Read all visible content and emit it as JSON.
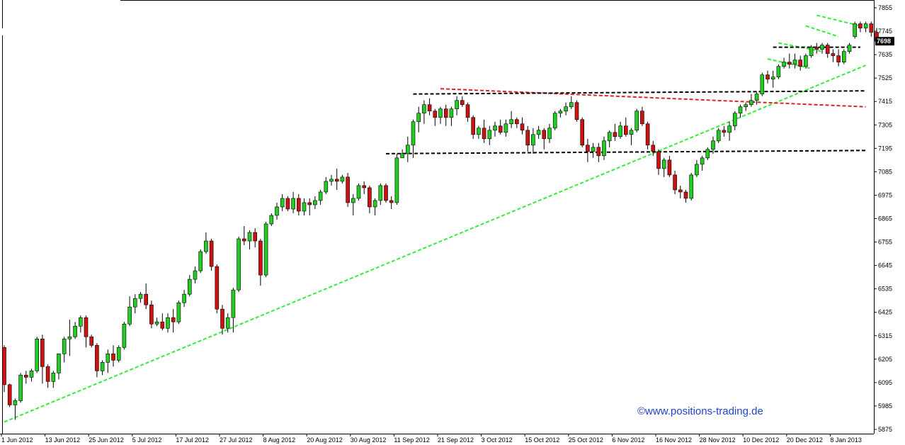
{
  "chart_data": {
    "type": "candlestick",
    "title": "",
    "xlabel": "",
    "ylabel": "",
    "ylim": [
      5860,
      7870
    ],
    "y_ticks": [
      7855,
      7745,
      7635,
      7525,
      7415,
      7305,
      7195,
      7085,
      6975,
      6865,
      6755,
      6645,
      6535,
      6425,
      6315,
      6205,
      6095,
      5985,
      5875
    ],
    "x_ticks": [
      {
        "label": "1 Jun 2012",
        "index": 0
      },
      {
        "label": "13 Jun 2012",
        "index": 8
      },
      {
        "label": "25 Jun 2012",
        "index": 16
      },
      {
        "label": "5 Jul 2012",
        "index": 24
      },
      {
        "label": "17 Jul 2012",
        "index": 32
      },
      {
        "label": "27 Jul 2012",
        "index": 40
      },
      {
        "label": "8 Aug 2012",
        "index": 48
      },
      {
        "label": "20 Aug 2012",
        "index": 56
      },
      {
        "label": "30 Aug 2012",
        "index": 64
      },
      {
        "label": "11 Sep 2012",
        "index": 72
      },
      {
        "label": "21 Sep 2012",
        "index": 80
      },
      {
        "label": "3 Oct 2012",
        "index": 88
      },
      {
        "label": "15 Oct 2012",
        "index": 96
      },
      {
        "label": "25 Oct 2012",
        "index": 104
      },
      {
        "label": "6 Nov 2012",
        "index": 112
      },
      {
        "label": "16 Nov 2012",
        "index": 120
      },
      {
        "label": "28 Nov 2012",
        "index": 128
      },
      {
        "label": "10 Dec 2012",
        "index": 136
      },
      {
        "label": "20 Dec 2012",
        "index": 144
      },
      {
        "label": "8 Jan 2013",
        "index": 152
      }
    ],
    "last_price": "7698",
    "colors": {
      "up": "#22cc22",
      "down": "#cc1111",
      "wick": "#000000",
      "support_green": "#33ee33",
      "resistance_red": "#dd2222",
      "channel_black": "#000000",
      "price_tag": "#000000"
    },
    "candles": [
      [
        6260,
        6270,
        6050,
        6085
      ],
      [
        6085,
        6090,
        5980,
        5990
      ],
      [
        5990,
        6020,
        5920,
        6010
      ],
      [
        6010,
        6140,
        6000,
        6130
      ],
      [
        6130,
        6150,
        6090,
        6120
      ],
      [
        6120,
        6160,
        6100,
        6150
      ],
      [
        6150,
        6310,
        6140,
        6300
      ],
      [
        6300,
        6320,
        6090,
        6170
      ],
      [
        6170,
        6180,
        6070,
        6100
      ],
      [
        6100,
        6150,
        6070,
        6140
      ],
      [
        6140,
        6220,
        6110,
        6230
      ],
      [
        6230,
        6310,
        6190,
        6300
      ],
      [
        6300,
        6390,
        6220,
        6310
      ],
      [
        6310,
        6380,
        6300,
        6360
      ],
      [
        6360,
        6410,
        6330,
        6400
      ],
      [
        6400,
        6410,
        6260,
        6310
      ],
      [
        6310,
        6320,
        6260,
        6270
      ],
      [
        6270,
        6280,
        6120,
        6150
      ],
      [
        6150,
        6200,
        6130,
        6190
      ],
      [
        6190,
        6250,
        6140,
        6230
      ],
      [
        6230,
        6270,
        6170,
        6200
      ],
      [
        6200,
        6270,
        6190,
        6260
      ],
      [
        6260,
        6380,
        6250,
        6370
      ],
      [
        6370,
        6500,
        6360,
        6450
      ],
      [
        6450,
        6510,
        6420,
        6490
      ],
      [
        6490,
        6520,
        6470,
        6510
      ],
      [
        6510,
        6560,
        6440,
        6460
      ],
      [
        6460,
        6480,
        6350,
        6370
      ],
      [
        6370,
        6400,
        6360,
        6380
      ],
      [
        6380,
        6420,
        6340,
        6350
      ],
      [
        6350,
        6420,
        6330,
        6400
      ],
      [
        6400,
        6440,
        6330,
        6380
      ],
      [
        6380,
        6480,
        6370,
        6470
      ],
      [
        6470,
        6530,
        6450,
        6510
      ],
      [
        6510,
        6600,
        6500,
        6580
      ],
      [
        6580,
        6640,
        6560,
        6620
      ],
      [
        6620,
        6720,
        6610,
        6710
      ],
      [
        6710,
        6800,
        6700,
        6760
      ],
      [
        6760,
        6770,
        6620,
        6640
      ],
      [
        6640,
        6650,
        6420,
        6440
      ],
      [
        6440,
        6460,
        6320,
        6350
      ],
      [
        6350,
        6420,
        6330,
        6400
      ],
      [
        6400,
        6540,
        6330,
        6530
      ],
      [
        6530,
        6780,
        6520,
        6770
      ],
      [
        6770,
        6830,
        6740,
        6760
      ],
      [
        6760,
        6810,
        6720,
        6800
      ],
      [
        6800,
        6820,
        6730,
        6760
      ],
      [
        6760,
        6770,
        6550,
        6600
      ],
      [
        6600,
        6850,
        6590,
        6840
      ],
      [
        6840,
        6890,
        6830,
        6880
      ],
      [
        6880,
        6940,
        6860,
        6920
      ],
      [
        6920,
        6980,
        6900,
        6960
      ],
      [
        6960,
        6970,
        6900,
        6910
      ],
      [
        6910,
        6990,
        6890,
        6960
      ],
      [
        6960,
        6980,
        6880,
        6900
      ],
      [
        6900,
        6960,
        6880,
        6940
      ],
      [
        6940,
        6960,
        6880,
        6930
      ],
      [
        6930,
        6970,
        6910,
        6950
      ],
      [
        6950,
        7000,
        6930,
        6990
      ],
      [
        6990,
        7060,
        6980,
        7040
      ],
      [
        7040,
        7070,
        7020,
        7050
      ],
      [
        7050,
        7100,
        7000,
        7040
      ],
      [
        7040,
        7070,
        7030,
        7060
      ],
      [
        7060,
        7080,
        6920,
        6940
      ],
      [
        6940,
        6980,
        6880,
        6960
      ],
      [
        6960,
        7030,
        6950,
        7020
      ],
      [
        7020,
        7040,
        6980,
        7010
      ],
      [
        7010,
        7020,
        6890,
        6920
      ],
      [
        6920,
        6960,
        6880,
        6950
      ],
      [
        6950,
        7030,
        6930,
        7020
      ],
      [
        7020,
        7030,
        6940,
        6950
      ],
      [
        6950,
        6970,
        6910,
        6940
      ],
      [
        6940,
        7170,
        6930,
        7150
      ],
      [
        7150,
        7190,
        7150,
        7170
      ],
      [
        7170,
        7250,
        7130,
        7210
      ],
      [
        7210,
        7330,
        7150,
        7320
      ],
      [
        7320,
        7390,
        7270,
        7360
      ],
      [
        7360,
        7420,
        7310,
        7400
      ],
      [
        7400,
        7430,
        7350,
        7370
      ],
      [
        7370,
        7380,
        7300,
        7340
      ],
      [
        7340,
        7390,
        7310,
        7380
      ],
      [
        7380,
        7400,
        7300,
        7340
      ],
      [
        7340,
        7390,
        7300,
        7380
      ],
      [
        7380,
        7440,
        7350,
        7420
      ],
      [
        7420,
        7440,
        7390,
        7400
      ],
      [
        7400,
        7410,
        7320,
        7340
      ],
      [
        7340,
        7350,
        7240,
        7260
      ],
      [
        7260,
        7300,
        7240,
        7290
      ],
      [
        7290,
        7330,
        7220,
        7240
      ],
      [
        7240,
        7300,
        7210,
        7280
      ],
      [
        7280,
        7320,
        7250,
        7300
      ],
      [
        7300,
        7330,
        7260,
        7270
      ],
      [
        7270,
        7330,
        7250,
        7310
      ],
      [
        7310,
        7370,
        7290,
        7330
      ],
      [
        7330,
        7340,
        7290,
        7310
      ],
      [
        7310,
        7340,
        7260,
        7280
      ],
      [
        7280,
        7300,
        7180,
        7210
      ],
      [
        7210,
        7290,
        7170,
        7260
      ],
      [
        7260,
        7300,
        7240,
        7280
      ],
      [
        7280,
        7290,
        7190,
        7240
      ],
      [
        7240,
        7310,
        7220,
        7290
      ],
      [
        7290,
        7370,
        7280,
        7360
      ],
      [
        7360,
        7380,
        7340,
        7370
      ],
      [
        7370,
        7410,
        7350,
        7390
      ],
      [
        7390,
        7440,
        7380,
        7410
      ],
      [
        7410,
        7420,
        7320,
        7330
      ],
      [
        7330,
        7340,
        7200,
        7210
      ],
      [
        7210,
        7240,
        7130,
        7180
      ],
      [
        7180,
        7220,
        7150,
        7200
      ],
      [
        7200,
        7220,
        7130,
        7160
      ],
      [
        7160,
        7250,
        7140,
        7230
      ],
      [
        7230,
        7280,
        7200,
        7270
      ],
      [
        7270,
        7310,
        7230,
        7250
      ],
      [
        7250,
        7320,
        7240,
        7300
      ],
      [
        7300,
        7340,
        7250,
        7260
      ],
      [
        7260,
        7290,
        7210,
        7280
      ],
      [
        7280,
        7380,
        7270,
        7370
      ],
      [
        7370,
        7390,
        7300,
        7310
      ],
      [
        7310,
        7320,
        7190,
        7210
      ],
      [
        7210,
        7230,
        7160,
        7180
      ],
      [
        7180,
        7190,
        7070,
        7100
      ],
      [
        7100,
        7150,
        7060,
        7140
      ],
      [
        7140,
        7160,
        7060,
        7070
      ],
      [
        7070,
        7090,
        6980,
        7000
      ],
      [
        7000,
        7020,
        6960,
        6990
      ],
      [
        6990,
        7000,
        6940,
        6960
      ],
      [
        6960,
        7080,
        6950,
        7070
      ],
      [
        7070,
        7140,
        7060,
        7120
      ],
      [
        7120,
        7160,
        7090,
        7150
      ],
      [
        7150,
        7200,
        7140,
        7190
      ],
      [
        7190,
        7250,
        7170,
        7230
      ],
      [
        7230,
        7290,
        7220,
        7280
      ],
      [
        7280,
        7300,
        7250,
        7270
      ],
      [
        7270,
        7320,
        7230,
        7300
      ],
      [
        7300,
        7370,
        7280,
        7360
      ],
      [
        7360,
        7400,
        7340,
        7390
      ],
      [
        7390,
        7410,
        7370,
        7400
      ],
      [
        7400,
        7450,
        7390,
        7420
      ],
      [
        7420,
        7460,
        7400,
        7450
      ],
      [
        7450,
        7550,
        7440,
        7540
      ],
      [
        7540,
        7560,
        7500,
        7520
      ],
      [
        7520,
        7560,
        7480,
        7530
      ],
      [
        7530,
        7590,
        7520,
        7580
      ],
      [
        7580,
        7620,
        7570,
        7600
      ],
      [
        7600,
        7640,
        7570,
        7590
      ],
      [
        7590,
        7640,
        7570,
        7610
      ],
      [
        7610,
        7630,
        7560,
        7580
      ],
      [
        7580,
        7640,
        7570,
        7630
      ],
      [
        7630,
        7680,
        7620,
        7670
      ],
      [
        7670,
        7690,
        7640,
        7660
      ],
      [
        7660,
        7690,
        7640,
        7680
      ],
      [
        7680,
        7690,
        7620,
        7640
      ],
      [
        7640,
        7660,
        7600,
        7630
      ],
      [
        7630,
        7660,
        7580,
        7600
      ],
      [
        7600,
        7660,
        7590,
        7650
      ],
      [
        7650,
        7690,
        7640,
        7680
      ],
      [
        7720,
        7790,
        7710,
        7780
      ],
      [
        7780,
        7790,
        7740,
        7760
      ],
      [
        7760,
        7790,
        7740,
        7780
      ],
      [
        7780,
        7790,
        7720,
        7740
      ],
      [
        7740,
        7760,
        7690,
        7698
      ]
    ],
    "trendlines": [
      {
        "name": "rising-support",
        "color": "green",
        "from": [
          0,
          5910
        ],
        "to": [
          158,
          7585
        ]
      },
      {
        "name": "falling-resistance",
        "color": "red",
        "from": [
          80,
          7475
        ],
        "to": [
          158,
          7390
        ]
      },
      {
        "name": "upper-channel",
        "color": "black",
        "from": [
          75,
          7450
        ],
        "to": [
          158,
          7465
        ]
      },
      {
        "name": "lower-channel",
        "color": "black",
        "from": [
          70,
          7170
        ],
        "to": [
          158,
          7185
        ]
      },
      {
        "name": "flag-lower-1",
        "color": "green",
        "from": [
          140,
          7615
        ],
        "to": [
          148,
          7570
        ]
      },
      {
        "name": "flag-upper-1",
        "color": "green",
        "from": [
          142,
          7690
        ],
        "to": [
          150,
          7650
        ]
      },
      {
        "name": "flag-upper-2",
        "color": "green",
        "from": [
          147,
          7770
        ],
        "to": [
          153,
          7720
        ]
      },
      {
        "name": "flag-lower-2",
        "color": "green",
        "from": [
          149,
          7820
        ],
        "to": [
          157,
          7770
        ]
      },
      {
        "name": "breakout-level",
        "color": "black",
        "from": [
          141,
          7670
        ],
        "to": [
          157,
          7670
        ]
      }
    ],
    "watermark": "©www.positions-trading.de"
  }
}
